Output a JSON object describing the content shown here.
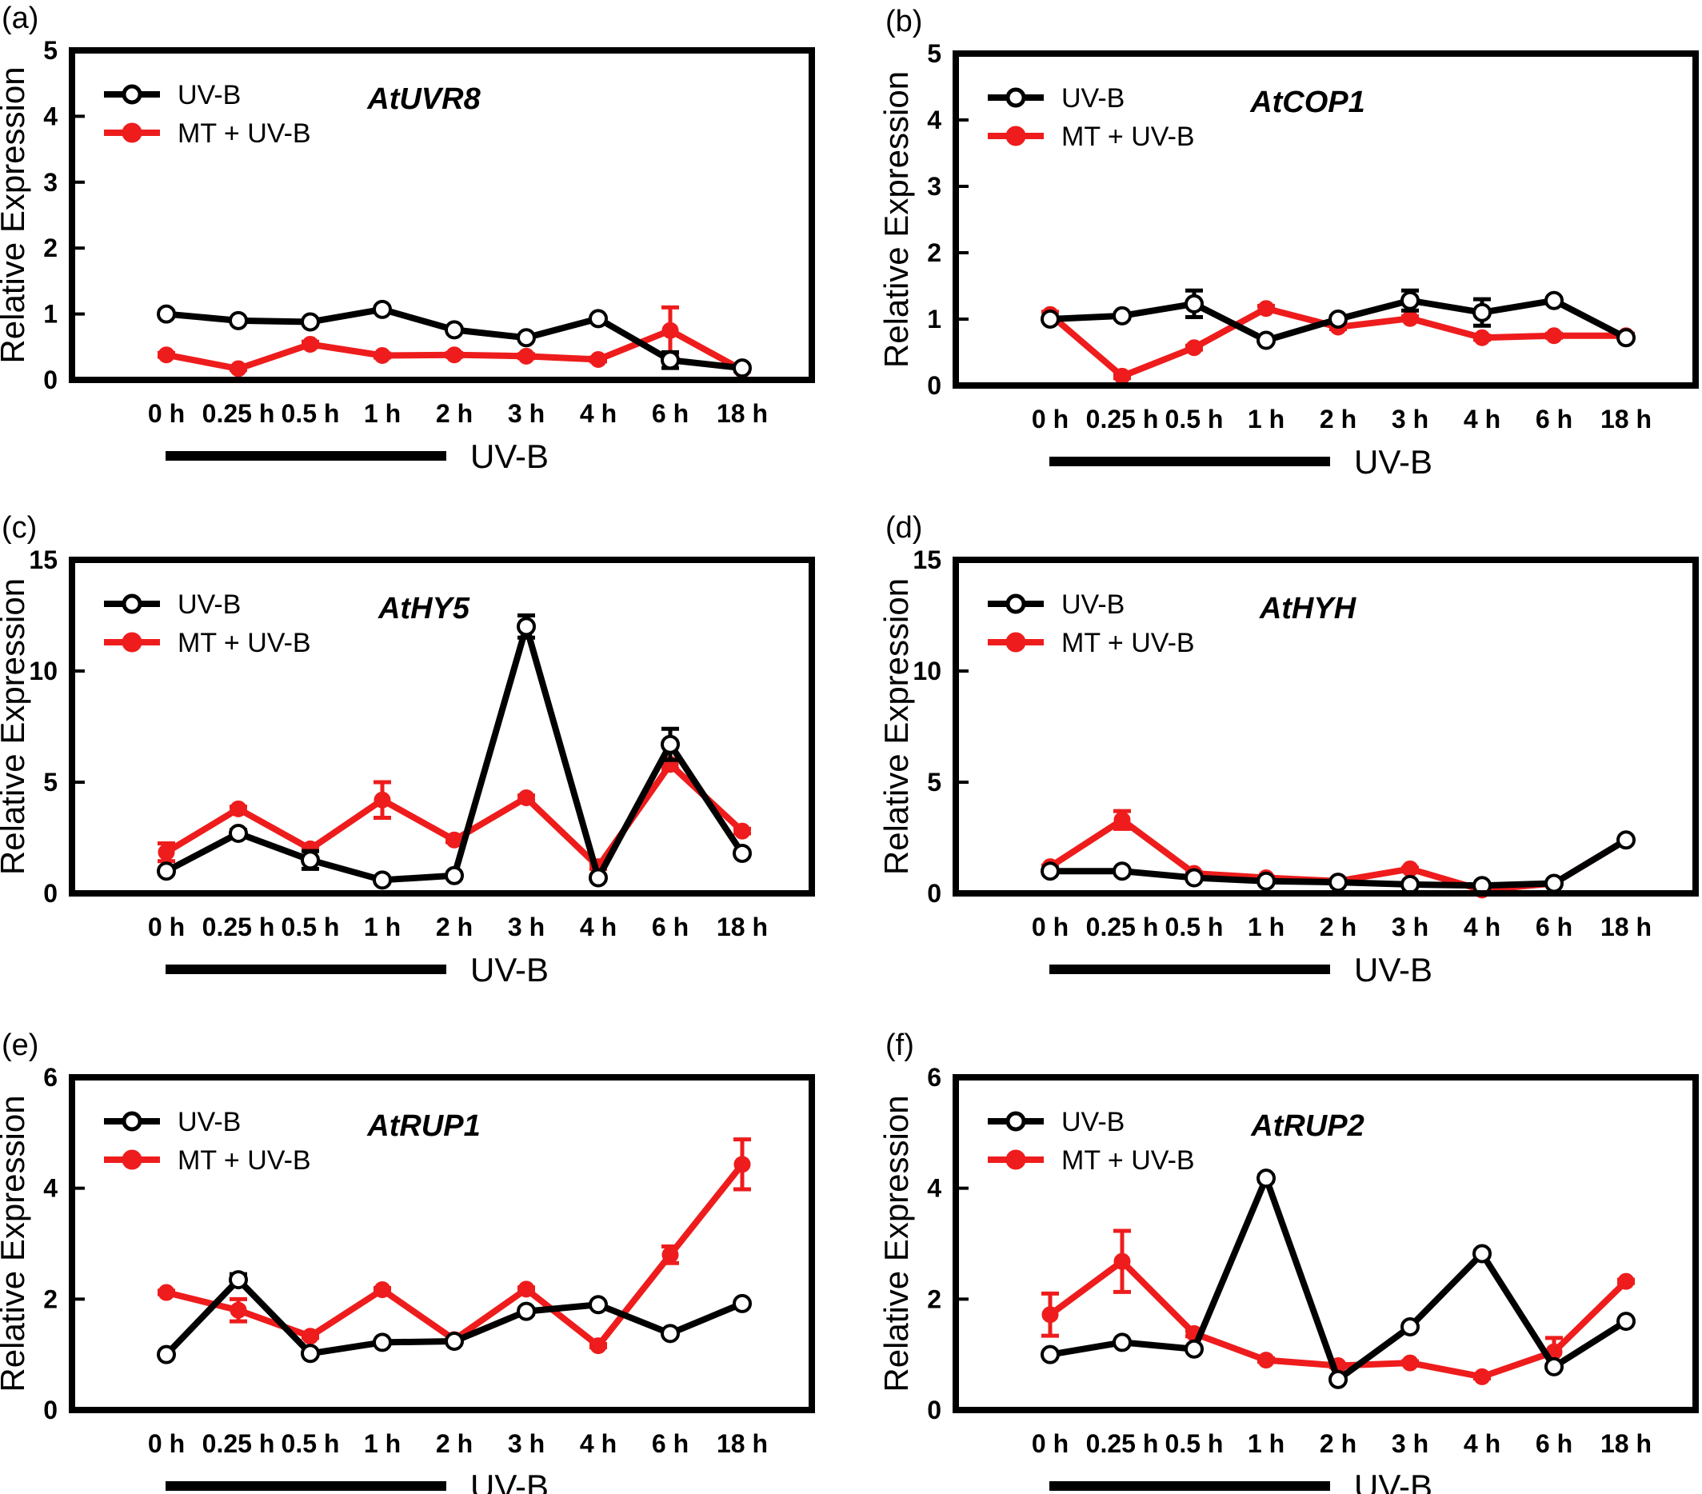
{
  "legend": [
    "UV-B",
    "MT + UV-B"
  ],
  "x_ticks": [
    "0 h",
    "0.25 h",
    "0.5 h",
    "1 h",
    "2 h",
    "3 h",
    "4 h",
    "6 h",
    "18 h"
  ],
  "treatment_bar_label": "UV-B",
  "colors": {
    "uvb": "#000000",
    "mt_uvb": "#ee1c1c"
  },
  "chart_data": [
    {
      "type": "line",
      "panel": "(a)",
      "gene": "AtUVR8",
      "ylabel": "Relative Expression",
      "ylim": [
        0,
        5
      ],
      "yticks": [
        0,
        1,
        2,
        3,
        4,
        5
      ],
      "categories": [
        "0 h",
        "0.25 h",
        "0.5 h",
        "1 h",
        "2 h",
        "3 h",
        "4 h",
        "6 h",
        "18 h"
      ],
      "series": [
        {
          "name": "UV-B",
          "values": [
            1.0,
            0.9,
            0.88,
            1.07,
            0.76,
            0.64,
            0.93,
            0.3,
            0.18
          ],
          "errors": [
            0.04,
            0.03,
            0.03,
            0.04,
            0.03,
            0.03,
            0.03,
            0.12,
            0.03
          ]
        },
        {
          "name": "MT + UV-B",
          "values": [
            0.38,
            0.17,
            0.54,
            0.37,
            0.38,
            0.36,
            0.31,
            0.75,
            0.15
          ],
          "errors": [
            0.03,
            0.02,
            0.04,
            0.03,
            0.03,
            0.03,
            0.03,
            0.35,
            0.02
          ]
        }
      ]
    },
    {
      "type": "line",
      "panel": "(b)",
      "gene": "AtCOP1",
      "ylabel": "Relative Expression",
      "ylim": [
        0,
        5
      ],
      "yticks": [
        0,
        1,
        2,
        3,
        4,
        5
      ],
      "categories": [
        "0 h",
        "0.25 h",
        "0.5 h",
        "1 h",
        "2 h",
        "3 h",
        "4 h",
        "6 h",
        "18 h"
      ],
      "series": [
        {
          "name": "UV-B",
          "values": [
            1.0,
            1.05,
            1.23,
            0.68,
            1.0,
            1.28,
            1.1,
            1.28,
            0.72
          ],
          "errors": [
            0.03,
            0.04,
            0.2,
            0.03,
            0.04,
            0.15,
            0.2,
            0.04,
            0.03
          ]
        },
        {
          "name": "MT + UV-B",
          "values": [
            1.07,
            0.14,
            0.57,
            1.16,
            0.88,
            1.01,
            0.72,
            0.75,
            0.75
          ],
          "errors": [
            0.04,
            0.03,
            0.03,
            0.04,
            0.03,
            0.03,
            0.03,
            0.03,
            0.03
          ]
        }
      ]
    },
    {
      "type": "line",
      "panel": "(c)",
      "gene": "AtHY5",
      "ylabel": "Relative Expression",
      "ylim": [
        0,
        15
      ],
      "yticks": [
        0,
        5,
        10,
        15
      ],
      "categories": [
        "0 h",
        "0.25 h",
        "0.5 h",
        "1 h",
        "2 h",
        "3 h",
        "4 h",
        "6 h",
        "18 h"
      ],
      "series": [
        {
          "name": "UV-B",
          "values": [
            1.0,
            2.7,
            1.5,
            0.6,
            0.8,
            12.0,
            0.7,
            6.7,
            1.8
          ],
          "errors": [
            0.1,
            0.15,
            0.4,
            0.1,
            0.1,
            0.5,
            0.1,
            0.7,
            0.1
          ]
        },
        {
          "name": "MT + UV-B",
          "values": [
            1.85,
            3.8,
            2.0,
            4.2,
            2.4,
            4.3,
            1.2,
            5.8,
            2.8
          ],
          "errors": [
            0.4,
            0.1,
            0.1,
            0.8,
            0.1,
            0.1,
            0.1,
            0.2,
            0.1
          ]
        }
      ]
    },
    {
      "type": "line",
      "panel": "(d)",
      "gene": "AtHYH",
      "ylabel": "Relative Expression",
      "ylim": [
        0,
        15
      ],
      "yticks": [
        0,
        5,
        10,
        15
      ],
      "categories": [
        "0 h",
        "0.25 h",
        "0.5 h",
        "1 h",
        "2 h",
        "3 h",
        "4 h",
        "6 h",
        "18 h"
      ],
      "series": [
        {
          "name": "UV-B",
          "values": [
            1.0,
            1.0,
            0.7,
            0.55,
            0.5,
            0.4,
            0.35,
            0.45,
            2.4
          ],
          "errors": [
            0.05,
            0.05,
            0.05,
            0.05,
            0.05,
            0.05,
            0.05,
            0.05,
            0.1
          ]
        },
        {
          "name": "MT + UV-B",
          "values": [
            1.2,
            3.3,
            0.9,
            0.7,
            0.55,
            1.1,
            0.15,
            0.45,
            2.4
          ],
          "errors": [
            0.05,
            0.4,
            0.05,
            0.05,
            0.05,
            0.05,
            0.05,
            0.05,
            0.05
          ]
        }
      ]
    },
    {
      "type": "line",
      "panel": "(e)",
      "gene": "AtRUP1",
      "ylabel": "Relative Expression",
      "ylim": [
        0,
        6
      ],
      "yticks": [
        0,
        2,
        4,
        6
      ],
      "categories": [
        "0 h",
        "0.25 h",
        "0.5 h",
        "1 h",
        "2 h",
        "3 h",
        "4 h",
        "6 h",
        "18 h"
      ],
      "series": [
        {
          "name": "UV-B",
          "values": [
            1.0,
            2.35,
            1.02,
            1.22,
            1.24,
            1.78,
            1.9,
            1.38,
            1.92
          ],
          "errors": [
            0.03,
            0.1,
            0.03,
            0.03,
            0.03,
            0.05,
            0.03,
            0.03,
            0.03
          ]
        },
        {
          "name": "MT + UV-B",
          "values": [
            2.12,
            1.8,
            1.33,
            2.17,
            1.27,
            2.18,
            1.16,
            2.8,
            4.43
          ],
          "errors": [
            0.03,
            0.2,
            0.03,
            0.03,
            0.03,
            0.03,
            0.03,
            0.15,
            0.45
          ]
        }
      ]
    },
    {
      "type": "line",
      "panel": "(f)",
      "gene": "AtRUP2",
      "ylabel": "Relative Expression",
      "ylim": [
        0,
        6
      ],
      "yticks": [
        0,
        2,
        4,
        6
      ],
      "categories": [
        "0 h",
        "0.25 h",
        "0.5 h",
        "1 h",
        "2 h",
        "3 h",
        "4 h",
        "6 h",
        "18 h"
      ],
      "series": [
        {
          "name": "UV-B",
          "values": [
            1.0,
            1.22,
            1.1,
            4.18,
            0.55,
            1.5,
            2.82,
            0.78,
            1.6
          ],
          "errors": [
            0.03,
            0.03,
            0.03,
            0.05,
            0.03,
            0.03,
            0.05,
            0.03,
            0.03
          ]
        },
        {
          "name": "MT + UV-B",
          "values": [
            1.72,
            2.68,
            1.38,
            0.9,
            0.8,
            0.85,
            0.6,
            1.05,
            2.32
          ],
          "errors": [
            0.38,
            0.55,
            0.05,
            0.03,
            0.03,
            0.03,
            0.03,
            0.25,
            0.03
          ]
        }
      ]
    }
  ]
}
